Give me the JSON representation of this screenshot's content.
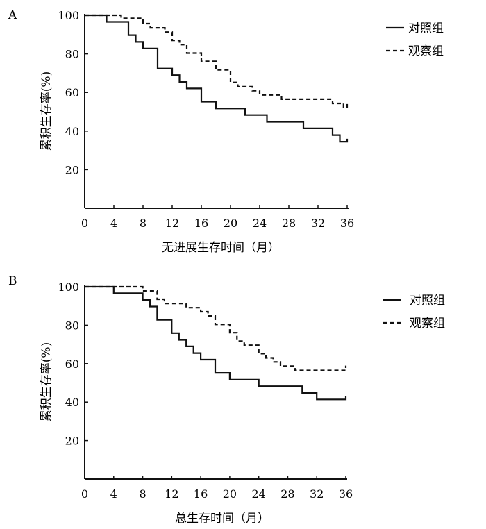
{
  "chart_data": [
    {
      "type": "line",
      "panel_label": "A",
      "xlabel": "无进展生存时间（月）",
      "ylabel": "累积生存率(%)",
      "xlim": [
        0,
        36
      ],
      "ylim": [
        0,
        100
      ],
      "x_ticks": [
        "0",
        "4",
        "8",
        "12",
        "16",
        "20",
        "24",
        "28",
        "32",
        "36"
      ],
      "y_ticks": [
        "20",
        "40",
        "60",
        "80",
        "100"
      ],
      "grid": false,
      "legend_position": "top-right",
      "series": [
        {
          "name": "对照组",
          "style": "solid",
          "color": "#111111",
          "points": [
            [
              0,
              100
            ],
            [
              3,
              100
            ],
            [
              3,
              96.6
            ],
            [
              6,
              96.6
            ],
            [
              6,
              89.7
            ],
            [
              7,
              89.7
            ],
            [
              7,
              86.2
            ],
            [
              8,
              86.2
            ],
            [
              8,
              82.8
            ],
            [
              10,
              82.8
            ],
            [
              10,
              72.4
            ],
            [
              12,
              72.4
            ],
            [
              12,
              69
            ],
            [
              13,
              69
            ],
            [
              13,
              65.5
            ],
            [
              14,
              65.5
            ],
            [
              14,
              62.1
            ],
            [
              16,
              62.1
            ],
            [
              16,
              55.2
            ],
            [
              18,
              55.2
            ],
            [
              18,
              51.7
            ],
            [
              22,
              51.7
            ],
            [
              22,
              48.3
            ],
            [
              25,
              48.3
            ],
            [
              25,
              44.8
            ],
            [
              30,
              44.8
            ],
            [
              30,
              41.4
            ],
            [
              34,
              41.4
            ],
            [
              34,
              37.9
            ],
            [
              35,
              37.9
            ],
            [
              35,
              34.5
            ],
            [
              36,
              34.5
            ],
            [
              36,
              36
            ]
          ]
        },
        {
          "name": "观察组",
          "style": "dashed",
          "color": "#111111",
          "points": [
            [
              0,
              100
            ],
            [
              5,
              100
            ],
            [
              5,
              98.4
            ],
            [
              8,
              98.4
            ],
            [
              8,
              95.7
            ],
            [
              9,
              95.7
            ],
            [
              9,
              93.5
            ],
            [
              11,
              93.5
            ],
            [
              11,
              91.3
            ],
            [
              12,
              91.3
            ],
            [
              12,
              87
            ],
            [
              13,
              87
            ],
            [
              13,
              84.8
            ],
            [
              14,
              84.8
            ],
            [
              14,
              80.4
            ],
            [
              16,
              80.4
            ],
            [
              16,
              76.1
            ],
            [
              18,
              76.1
            ],
            [
              18,
              71.7
            ],
            [
              20,
              71.7
            ],
            [
              20,
              65.2
            ],
            [
              21,
              65.2
            ],
            [
              21,
              63
            ],
            [
              23,
              63
            ],
            [
              23,
              60.9
            ],
            [
              24,
              60.9
            ],
            [
              24,
              58.7
            ],
            [
              27,
              58.7
            ],
            [
              27,
              56.5
            ],
            [
              34,
              56.5
            ],
            [
              34,
              54.3
            ],
            [
              35.5,
              54.3
            ],
            [
              35.5,
              52.2
            ],
            [
              36,
              52.2
            ],
            [
              36,
              54
            ]
          ]
        }
      ]
    },
    {
      "type": "line",
      "panel_label": "B",
      "xlabel": "总生存时间（月）",
      "ylabel": "累积生存率(%)",
      "xlim": [
        0,
        36
      ],
      "ylim": [
        0,
        100
      ],
      "x_ticks": [
        "0",
        "4",
        "8",
        "12",
        "16",
        "20",
        "24",
        "28",
        "32",
        "36"
      ],
      "y_ticks": [
        "20",
        "40",
        "60",
        "80",
        "100"
      ],
      "grid": false,
      "legend_position": "top-right",
      "series": [
        {
          "name": "对照组",
          "style": "solid",
          "color": "#111111",
          "points": [
            [
              0,
              100
            ],
            [
              4,
              100
            ],
            [
              4,
              96.6
            ],
            [
              8,
              96.6
            ],
            [
              8,
              93.1
            ],
            [
              9,
              93.1
            ],
            [
              9,
              89.7
            ],
            [
              10,
              89.7
            ],
            [
              10,
              82.8
            ],
            [
              12,
              82.8
            ],
            [
              12,
              75.9
            ],
            [
              13,
              75.9
            ],
            [
              13,
              72.4
            ],
            [
              14,
              72.4
            ],
            [
              14,
              69
            ],
            [
              15,
              69
            ],
            [
              15,
              65.5
            ],
            [
              16,
              65.5
            ],
            [
              16,
              62.1
            ],
            [
              18,
              62.1
            ],
            [
              18,
              55.2
            ],
            [
              20,
              55.2
            ],
            [
              20,
              51.7
            ],
            [
              24,
              51.7
            ],
            [
              24,
              48.3
            ],
            [
              30,
              48.3
            ],
            [
              30,
              44.8
            ],
            [
              32,
              44.8
            ],
            [
              32,
              41.4
            ],
            [
              36,
              41.4
            ],
            [
              36,
              43
            ]
          ]
        },
        {
          "name": "观察组",
          "style": "dashed",
          "color": "#111111",
          "points": [
            [
              0,
              100
            ],
            [
              8,
              100
            ],
            [
              8,
              97.8
            ],
            [
              10,
              97.8
            ],
            [
              10,
              93.5
            ],
            [
              11,
              93.5
            ],
            [
              11,
              91.3
            ],
            [
              14,
              91.3
            ],
            [
              14,
              89.1
            ],
            [
              16,
              89.1
            ],
            [
              16,
              87
            ],
            [
              17,
              87
            ],
            [
              17,
              84.8
            ],
            [
              18,
              84.8
            ],
            [
              18,
              80.4
            ],
            [
              20,
              80.4
            ],
            [
              20,
              76.1
            ],
            [
              21,
              76.1
            ],
            [
              21,
              71.7
            ],
            [
              22,
              71.7
            ],
            [
              22,
              69.6
            ],
            [
              24,
              69.6
            ],
            [
              24,
              65.2
            ],
            [
              25,
              65.2
            ],
            [
              25,
              63
            ],
            [
              26,
              63
            ],
            [
              26,
              60.9
            ],
            [
              27,
              60.9
            ],
            [
              27,
              58.7
            ],
            [
              29,
              58.7
            ],
            [
              29,
              56.5
            ],
            [
              36,
              56.5
            ],
            [
              36,
              59
            ]
          ]
        }
      ]
    }
  ]
}
